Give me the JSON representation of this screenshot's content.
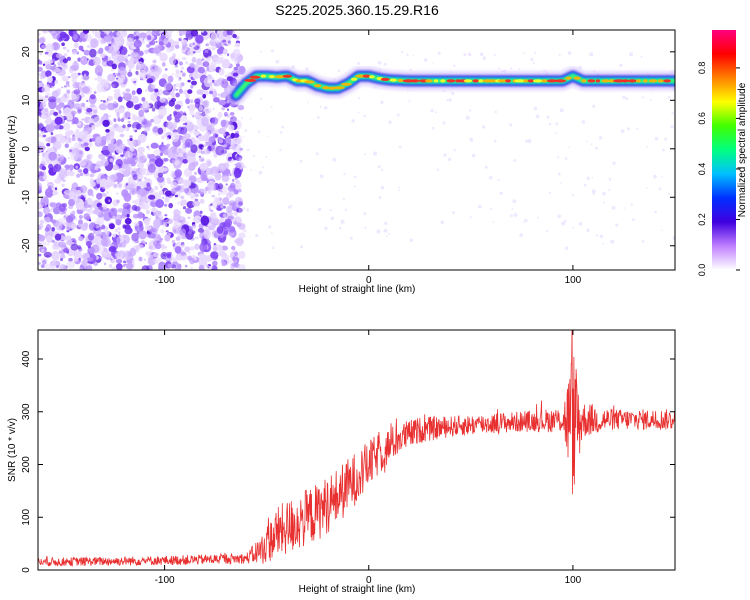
{
  "title": "S225.2025.360.15.29.R16",
  "chart_data": [
    {
      "type": "heatmap",
      "xlabel": "Height of straight line (km)",
      "ylabel": "Frequency (Hz)",
      "xlim": [
        -162,
        150
      ],
      "ylim": [
        -25,
        24.5
      ],
      "x_ticks": [
        -100,
        0,
        100
      ],
      "y_ticks": [
        -20,
        -10,
        0,
        10,
        20
      ],
      "noise_region_x": [
        -162,
        -65
      ],
      "signal_ridge": {
        "x": [
          -65,
          -60,
          -55,
          -50,
          -45,
          -40,
          -35,
          -30,
          -25,
          -20,
          -15,
          -10,
          -5,
          0,
          5,
          10,
          20,
          40,
          60,
          80,
          95,
          100,
          105,
          120,
          150
        ],
        "y": [
          11,
          13.5,
          15,
          15,
          14.8,
          15,
          14,
          14,
          13,
          12.5,
          12.5,
          13.5,
          15,
          15,
          14.5,
          14.2,
          14,
          14,
          14,
          14,
          14,
          15,
          14,
          14,
          14
        ]
      },
      "colorbar": {
        "label": "Normalized spectral amplitude",
        "range": [
          0,
          0.95
        ],
        "ticks": [
          0,
          0.2,
          0.4,
          0.6,
          0.8
        ],
        "colors": [
          "#ffffff",
          "#c080ff",
          "#4000e0",
          "#0030ff",
          "#00c0ff",
          "#00ff80",
          "#40ff00",
          "#ffff00",
          "#ff8000",
          "#ff0000",
          "#ff0080"
        ]
      }
    },
    {
      "type": "line",
      "xlabel": "Height of straight line (km)",
      "ylabel": "SNR (10 * v/v)",
      "xlim": [
        -162,
        150
      ],
      "ylim": [
        0,
        455
      ],
      "x_ticks": [
        -100,
        0,
        100
      ],
      "y_ticks": [
        0,
        100,
        200,
        300,
        400
      ],
      "series": [
        {
          "color": "#e83030",
          "envelope_x": [
            -162,
            -100,
            -60,
            -52,
            -45,
            -35,
            -25,
            -15,
            -5,
            5,
            15,
            25,
            40,
            60,
            80,
            95,
            100,
            105,
            120,
            150
          ],
          "envelope_mean": [
            15,
            18,
            22,
            40,
            70,
            90,
            110,
            140,
            180,
            220,
            250,
            265,
            272,
            278,
            282,
            285,
            280,
            285,
            285,
            285
          ],
          "envelope_spread": [
            8,
            9,
            10,
            30,
            50,
            55,
            55,
            55,
            50,
            40,
            30,
            25,
            20,
            20,
            20,
            25,
            150,
            35,
            20,
            20
          ]
        }
      ]
    }
  ]
}
